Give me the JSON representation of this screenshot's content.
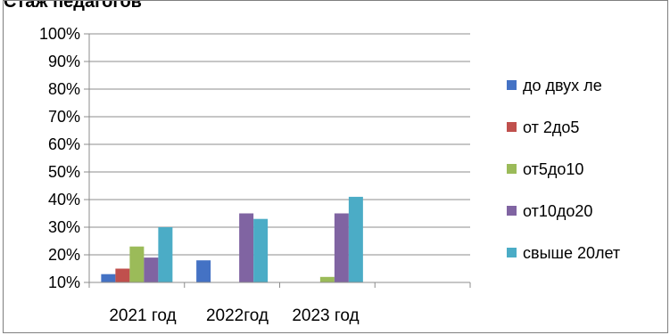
{
  "clipped_heading": "Стаж педагогов",
  "chart_data": {
    "type": "bar",
    "categories": [
      "2021 год",
      "2022год",
      "2023 год",
      ""
    ],
    "ylim": [
      0.1,
      1.0
    ],
    "y_ticks": [
      "10%",
      "20%",
      "30%",
      "40%",
      "50%",
      "60%",
      "70%",
      "80%",
      "90%",
      "100%"
    ],
    "grid": "horizontal",
    "legend_position": "right",
    "series": [
      {
        "name": "до двух ле",
        "color": "#4472C4",
        "values": [
          0.13,
          0.18,
          0.095,
          null
        ]
      },
      {
        "name": "от 2до5",
        "color": "#C0504D",
        "values": [
          0.15,
          null,
          0.095,
          null
        ]
      },
      {
        "name": "от5до10",
        "color": "#9BBB59",
        "values": [
          0.23,
          0.095,
          0.12,
          null
        ]
      },
      {
        "name": "от10до20",
        "color": "#8064A2",
        "values": [
          0.19,
          0.35,
          0.35,
          null
        ]
      },
      {
        "name": "свыше 20лет",
        "color": "#4BACC6",
        "values": [
          0.3,
          0.33,
          0.41,
          null
        ]
      }
    ]
  }
}
